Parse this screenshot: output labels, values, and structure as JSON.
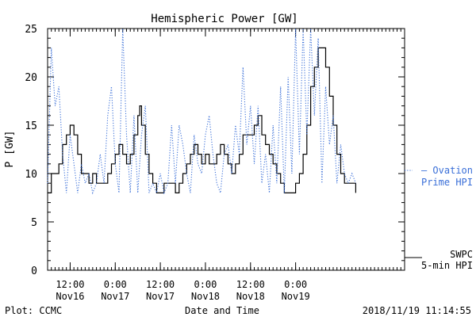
{
  "chart_data": {
    "type": "line",
    "title": "Hemispheric Power [GW]",
    "ylabel": "P [GW]",
    "xlabel": "Date and Time",
    "ylim": [
      0,
      25
    ],
    "yticks": [
      0,
      5,
      10,
      15,
      20,
      25
    ],
    "xlim": [
      "2018-11-16 06:00",
      "2018-11-20 05:00"
    ],
    "xticks": [
      {
        "time": "2018-11-16 12:00",
        "line1": "12:00",
        "line2": "Nov16"
      },
      {
        "time": "2018-11-17 00:00",
        "line1": "0:00",
        "line2": "Nov17"
      },
      {
        "time": "2018-11-17 12:00",
        "line1": "12:00",
        "line2": "Nov17"
      },
      {
        "time": "2018-11-18 00:00",
        "line1": "0:00",
        "line2": "Nov18"
      },
      {
        "time": "2018-11-18 12:00",
        "line1": "12:00",
        "line2": "Nov18"
      },
      {
        "time": "2018-11-19 00:00",
        "line1": "0:00",
        "line2": "Nov19"
      }
    ],
    "grid": false,
    "series": [
      {
        "name_lines": [
          "SWPC",
          "5-min HPI"
        ],
        "color": "#000000",
        "style": "solid-step",
        "points": [
          [
            "2018-11-16 06:00",
            8
          ],
          [
            "2018-11-16 07:00",
            10
          ],
          [
            "2018-11-16 08:00",
            10
          ],
          [
            "2018-11-16 09:00",
            11
          ],
          [
            "2018-11-16 10:00",
            13
          ],
          [
            "2018-11-16 11:00",
            14
          ],
          [
            "2018-11-16 12:00",
            15
          ],
          [
            "2018-11-16 13:00",
            14
          ],
          [
            "2018-11-16 14:00",
            12
          ],
          [
            "2018-11-16 15:00",
            10
          ],
          [
            "2018-11-16 16:00",
            10
          ],
          [
            "2018-11-16 17:00",
            9
          ],
          [
            "2018-11-16 18:00",
            10
          ],
          [
            "2018-11-16 19:00",
            9
          ],
          [
            "2018-11-16 20:00",
            9
          ],
          [
            "2018-11-16 21:00",
            9
          ],
          [
            "2018-11-16 22:00",
            10
          ],
          [
            "2018-11-16 23:00",
            11
          ],
          [
            "2018-11-17 00:00",
            12
          ],
          [
            "2018-11-17 01:00",
            13
          ],
          [
            "2018-11-17 02:00",
            12
          ],
          [
            "2018-11-17 03:00",
            11
          ],
          [
            "2018-11-17 04:00",
            12
          ],
          [
            "2018-11-17 05:00",
            14
          ],
          [
            "2018-11-17 06:00",
            16
          ],
          [
            "2018-11-17 06:30",
            17
          ],
          [
            "2018-11-17 07:00",
            15
          ],
          [
            "2018-11-17 08:00",
            12
          ],
          [
            "2018-11-17 09:00",
            10
          ],
          [
            "2018-11-17 10:00",
            9
          ],
          [
            "2018-11-17 11:00",
            8
          ],
          [
            "2018-11-17 12:00",
            8
          ],
          [
            "2018-11-17 13:00",
            9
          ],
          [
            "2018-11-17 14:00",
            9
          ],
          [
            "2018-11-17 15:00",
            9
          ],
          [
            "2018-11-17 16:00",
            8
          ],
          [
            "2018-11-17 17:00",
            9
          ],
          [
            "2018-11-17 18:00",
            10
          ],
          [
            "2018-11-17 19:00",
            11
          ],
          [
            "2018-11-17 20:00",
            12
          ],
          [
            "2018-11-17 21:00",
            13
          ],
          [
            "2018-11-17 22:00",
            12
          ],
          [
            "2018-11-17 23:00",
            11
          ],
          [
            "2018-11-18 00:00",
            12
          ],
          [
            "2018-11-18 01:00",
            11
          ],
          [
            "2018-11-18 02:00",
            11
          ],
          [
            "2018-11-18 03:00",
            12
          ],
          [
            "2018-11-18 04:00",
            13
          ],
          [
            "2018-11-18 05:00",
            12
          ],
          [
            "2018-11-18 06:00",
            11
          ],
          [
            "2018-11-18 07:00",
            10
          ],
          [
            "2018-11-18 08:00",
            11
          ],
          [
            "2018-11-18 09:00",
            12
          ],
          [
            "2018-11-18 10:00",
            14
          ],
          [
            "2018-11-18 11:00",
            14
          ],
          [
            "2018-11-18 12:00",
            14
          ],
          [
            "2018-11-18 13:00",
            15
          ],
          [
            "2018-11-18 14:00",
            16
          ],
          [
            "2018-11-18 15:00",
            14
          ],
          [
            "2018-11-18 16:00",
            13
          ],
          [
            "2018-11-18 17:00",
            12
          ],
          [
            "2018-11-18 18:00",
            11
          ],
          [
            "2018-11-18 19:00",
            10
          ],
          [
            "2018-11-18 20:00",
            9
          ],
          [
            "2018-11-18 21:00",
            8
          ],
          [
            "2018-11-18 22:00",
            8
          ],
          [
            "2018-11-18 23:00",
            8
          ],
          [
            "2018-11-19 00:00",
            9
          ],
          [
            "2018-11-19 01:00",
            10
          ],
          [
            "2018-11-19 02:00",
            12
          ],
          [
            "2018-11-19 03:00",
            15
          ],
          [
            "2018-11-19 04:00",
            19
          ],
          [
            "2018-11-19 05:00",
            21
          ],
          [
            "2018-11-19 06:00",
            23
          ],
          [
            "2018-11-19 07:00",
            23
          ],
          [
            "2018-11-19 08:00",
            21
          ],
          [
            "2018-11-19 09:00",
            18
          ],
          [
            "2018-11-19 10:00",
            15
          ],
          [
            "2018-11-19 11:00",
            12
          ],
          [
            "2018-11-19 12:00",
            10
          ],
          [
            "2018-11-19 13:00",
            9
          ],
          [
            "2018-11-19 14:00",
            9
          ],
          [
            "2018-11-19 15:00",
            9
          ],
          [
            "2018-11-19 16:00",
            8
          ]
        ]
      },
      {
        "name_lines": [
          "– Ovation",
          "Prime HPI"
        ],
        "color": "#3a6fd8",
        "style": "dotted",
        "points": [
          [
            "2018-11-16 06:00",
            9
          ],
          [
            "2018-11-16 07:00",
            23
          ],
          [
            "2018-11-16 08:00",
            17
          ],
          [
            "2018-11-16 09:00",
            19
          ],
          [
            "2018-11-16 10:00",
            12
          ],
          [
            "2018-11-16 11:00",
            8
          ],
          [
            "2018-11-16 12:00",
            14
          ],
          [
            "2018-11-16 13:00",
            11
          ],
          [
            "2018-11-16 14:00",
            8
          ],
          [
            "2018-11-16 15:00",
            11
          ],
          [
            "2018-11-16 16:00",
            9
          ],
          [
            "2018-11-16 17:00",
            10
          ],
          [
            "2018-11-16 18:00",
            8
          ],
          [
            "2018-11-16 19:00",
            9
          ],
          [
            "2018-11-16 20:00",
            12
          ],
          [
            "2018-11-16 21:00",
            9
          ],
          [
            "2018-11-16 22:00",
            16
          ],
          [
            "2018-11-16 23:00",
            19
          ],
          [
            "2018-11-17 00:00",
            11
          ],
          [
            "2018-11-17 01:00",
            8
          ],
          [
            "2018-11-17 02:00",
            25
          ],
          [
            "2018-11-17 03:00",
            14
          ],
          [
            "2018-11-17 04:00",
            8
          ],
          [
            "2018-11-17 05:00",
            16
          ],
          [
            "2018-11-17 06:00",
            8
          ],
          [
            "2018-11-17 07:00",
            14
          ],
          [
            "2018-11-17 08:00",
            17
          ],
          [
            "2018-11-17 09:00",
            8
          ],
          [
            "2018-11-17 10:00",
            9
          ],
          [
            "2018-11-17 11:00",
            8
          ],
          [
            "2018-11-17 12:00",
            10
          ],
          [
            "2018-11-17 13:00",
            8
          ],
          [
            "2018-11-17 14:00",
            9
          ],
          [
            "2018-11-17 15:00",
            15
          ],
          [
            "2018-11-17 16:00",
            9
          ],
          [
            "2018-11-17 17:00",
            15
          ],
          [
            "2018-11-17 18:00",
            13
          ],
          [
            "2018-11-17 19:00",
            10
          ],
          [
            "2018-11-17 20:00",
            8
          ],
          [
            "2018-11-17 21:00",
            14
          ],
          [
            "2018-11-17 22:00",
            11
          ],
          [
            "2018-11-17 23:00",
            10
          ],
          [
            "2018-11-18 00:00",
            14
          ],
          [
            "2018-11-18 01:00",
            16
          ],
          [
            "2018-11-18 02:00",
            12
          ],
          [
            "2018-11-18 03:00",
            9
          ],
          [
            "2018-11-18 04:00",
            8
          ],
          [
            "2018-11-18 05:00",
            12
          ],
          [
            "2018-11-18 06:00",
            13
          ],
          [
            "2018-11-18 07:00",
            10
          ],
          [
            "2018-11-18 08:00",
            15
          ],
          [
            "2018-11-18 09:00",
            12
          ],
          [
            "2018-11-18 10:00",
            21
          ],
          [
            "2018-11-18 11:00",
            13
          ],
          [
            "2018-11-18 12:00",
            17
          ],
          [
            "2018-11-18 13:00",
            11
          ],
          [
            "2018-11-18 14:00",
            17
          ],
          [
            "2018-11-18 15:00",
            9
          ],
          [
            "2018-11-18 16:00",
            12
          ],
          [
            "2018-11-18 17:00",
            8
          ],
          [
            "2018-11-18 18:00",
            15
          ],
          [
            "2018-11-18 19:00",
            9
          ],
          [
            "2018-11-18 20:00",
            19
          ],
          [
            "2018-11-18 21:00",
            8
          ],
          [
            "2018-11-18 22:00",
            20
          ],
          [
            "2018-11-18 23:00",
            10
          ],
          [
            "2018-11-19 00:00",
            25
          ],
          [
            "2018-11-19 01:00",
            12
          ],
          [
            "2018-11-19 02:00",
            25
          ],
          [
            "2018-11-19 03:00",
            14
          ],
          [
            "2018-11-19 04:00",
            25
          ],
          [
            "2018-11-19 05:00",
            16
          ],
          [
            "2018-11-19 06:00",
            24
          ],
          [
            "2018-11-19 07:00",
            9
          ],
          [
            "2018-11-19 08:00",
            19
          ],
          [
            "2018-11-19 09:00",
            13
          ],
          [
            "2018-11-19 10:00",
            16
          ],
          [
            "2018-11-19 11:00",
            9
          ],
          [
            "2018-11-19 12:00",
            13
          ],
          [
            "2018-11-19 13:00",
            10
          ],
          [
            "2018-11-19 14:00",
            9
          ],
          [
            "2018-11-19 15:00",
            10
          ],
          [
            "2018-11-19 16:00",
            9
          ]
        ]
      }
    ]
  },
  "footer": {
    "left": "Plot: CCMC",
    "center": "Date and Time",
    "right": "2018/11/19 11:14:55"
  }
}
